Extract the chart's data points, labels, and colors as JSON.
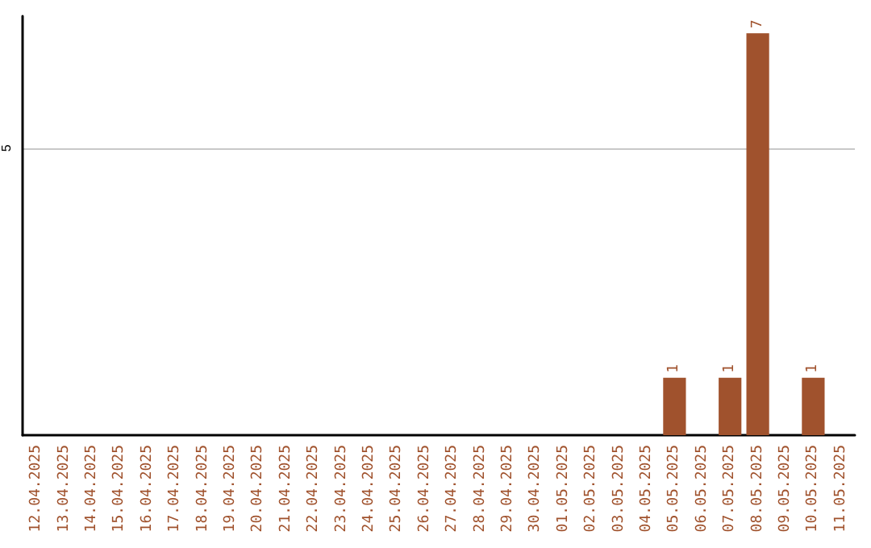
{
  "chart_data": {
    "type": "bar",
    "categories": [
      "12.04.2025",
      "13.04.2025",
      "14.04.2025",
      "15.04.2025",
      "16.04.2025",
      "17.04.2025",
      "18.04.2025",
      "19.04.2025",
      "20.04.2025",
      "21.04.2025",
      "22.04.2025",
      "23.04.2025",
      "24.04.2025",
      "25.04.2025",
      "26.04.2025",
      "27.04.2025",
      "28.04.2025",
      "29.04.2025",
      "30.04.2025",
      "01.05.2025",
      "02.05.2025",
      "03.05.2025",
      "04.05.2025",
      "05.05.2025",
      "06.05.2025",
      "07.05.2025",
      "08.05.2025",
      "09.05.2025",
      "10.05.2025",
      "11.05.2025"
    ],
    "values": [
      null,
      null,
      null,
      null,
      null,
      null,
      null,
      null,
      null,
      null,
      null,
      null,
      null,
      null,
      null,
      null,
      null,
      null,
      null,
      null,
      null,
      null,
      null,
      1,
      null,
      1,
      7,
      null,
      1,
      null
    ],
    "color": "#a0522d",
    "ylim": [
      0,
      7.3
    ],
    "yticks": [
      5
    ],
    "grid": "y",
    "data_labels": true
  }
}
